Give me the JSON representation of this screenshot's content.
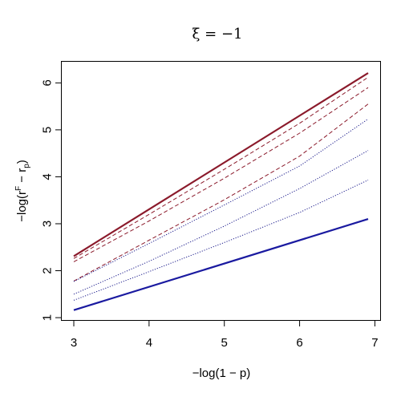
{
  "chart_data": {
    "type": "line",
    "title": "ξ = −1",
    "xlabel": "−log(1 − p)",
    "ylabel": {
      "prefix": "−log(r",
      "superscript": "F",
      "middle": " − r",
      "subscript": "p",
      "suffix": ")"
    },
    "xlim": [
      2.84,
      7.07
    ],
    "ylim": [
      0.95,
      6.45
    ],
    "x_ticks": [
      3,
      4,
      5,
      6,
      7
    ],
    "y_ticks": [
      1,
      2,
      3,
      4,
      5,
      6
    ],
    "grid": false,
    "legend": "none",
    "series": [
      {
        "style": "solid-thick",
        "color": "#8b1a2b",
        "x": [
          3.0,
          6.91
        ],
        "y": [
          2.31,
          6.21
        ]
      },
      {
        "style": "dashed",
        "color": "#8b1a2b",
        "x": [
          3.0,
          4.0,
          5.0,
          6.0,
          6.91
        ],
        "y": [
          2.26,
          3.2,
          4.16,
          5.14,
          6.12
        ]
      },
      {
        "style": "dashed",
        "color": "#8b1a2b",
        "x": [
          3.0,
          4.0,
          5.0,
          6.0,
          6.91
        ],
        "y": [
          2.19,
          3.06,
          3.97,
          4.93,
          5.9
        ]
      },
      {
        "style": "dashed",
        "color": "#8b1a2b",
        "x": [
          3.0,
          4.0,
          5.0,
          6.0,
          6.91
        ],
        "y": [
          1.78,
          2.65,
          3.51,
          4.44,
          5.55
        ]
      },
      {
        "style": "dotted",
        "color": "#1a1a8b",
        "x": [
          3.0,
          4.0,
          5.0,
          6.0,
          6.91
        ],
        "y": [
          1.77,
          2.58,
          3.4,
          4.23,
          5.23
        ]
      },
      {
        "style": "dotted",
        "color": "#1a1a8b",
        "x": [
          3.0,
          4.0,
          5.0,
          6.0,
          6.91
        ],
        "y": [
          1.5,
          2.2,
          2.95,
          3.75,
          4.56
        ]
      },
      {
        "style": "dotted",
        "color": "#1a1a8b",
        "x": [
          3.0,
          4.0,
          5.0,
          6.0,
          6.91
        ],
        "y": [
          1.37,
          1.98,
          2.6,
          3.24,
          3.93
        ]
      },
      {
        "style": "solid-thick",
        "color": "#1a1aa0",
        "x": [
          3.0,
          6.91
        ],
        "y": [
          1.16,
          3.1
        ]
      }
    ]
  }
}
